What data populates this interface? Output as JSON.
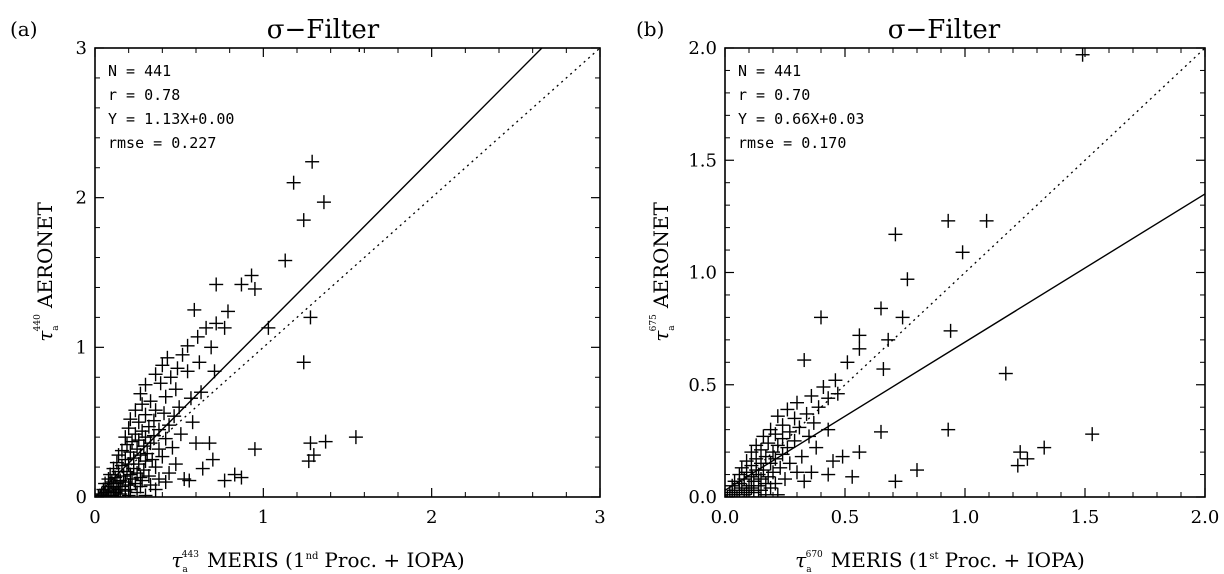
{
  "figure": {
    "panels": [
      {
        "tag": "(a)",
        "title": "σ−Filter",
        "ylabel_sym": "τ",
        "ylabel_sub": "a",
        "ylabel_sup": "440",
        "ylabel_text": "AERONET",
        "xlabel_sym": "τ",
        "xlabel_sub": "a",
        "xlabel_sup": "443",
        "xlabel_text_a": "MERIS (1",
        "xlabel_text_sup": "nd",
        "xlabel_text_b": "Proc. + IOPA)",
        "stats": [
          "N = 441",
          "r = 0.78",
          "Y = 1.13X+0.00",
          "rmse = 0.227"
        ]
      },
      {
        "tag": "(b)",
        "title": "σ−Filter",
        "ylabel_sym": "τ",
        "ylabel_sub": "a",
        "ylabel_sup": "675",
        "ylabel_text": "AERONET",
        "xlabel_sym": "τ",
        "xlabel_sub": "a",
        "xlabel_sup": "670",
        "xlabel_text_a": "MERIS (1",
        "xlabel_text_sup": "st",
        "xlabel_text_b": "Proc. + IOPA)",
        "stats": [
          "N = 441",
          "r = 0.70",
          "Y = 0.66X+0.03",
          "rmse = 0.170"
        ]
      }
    ]
  },
  "chart_data": [
    {
      "type": "scatter",
      "title": "σ−Filter",
      "xlabel": "τa443 MERIS (1nd Proc. + IOPA)",
      "ylabel": "τa440 AERONET",
      "xlim": [
        0,
        3
      ],
      "ylim": [
        0,
        3
      ],
      "xticks": [
        0,
        1,
        2,
        3
      ],
      "xtick_labels": [
        "0",
        "1",
        "2",
        "3"
      ],
      "yticks": [
        0,
        1,
        2,
        3
      ],
      "ytick_labels": [
        "0",
        "1",
        "2",
        "3"
      ],
      "marker": "+",
      "fit_line": {
        "slope": 1.13,
        "intercept": 0.0,
        "style": "solid"
      },
      "one_to_one_line": {
        "style": "dotted"
      },
      "stats": {
        "N": 441,
        "r": 0.78,
        "slope": 1.13,
        "intercept": 0.0,
        "rmse": 0.227
      },
      "points": [
        [
          1.57,
          3.02
        ],
        [
          1.29,
          2.24
        ],
        [
          1.18,
          2.1
        ],
        [
          1.36,
          1.97
        ],
        [
          1.24,
          1.85
        ],
        [
          1.13,
          1.58
        ],
        [
          0.93,
          1.48
        ],
        [
          0.87,
          1.42
        ],
        [
          0.72,
          1.42
        ],
        [
          0.95,
          1.39
        ],
        [
          0.59,
          1.25
        ],
        [
          0.79,
          1.24
        ],
        [
          1.28,
          1.2
        ],
        [
          0.77,
          1.13
        ],
        [
          1.03,
          1.13
        ],
        [
          0.66,
          1.13
        ],
        [
          0.72,
          1.16
        ],
        [
          0.61,
          1.07
        ],
        [
          0.55,
          1.01
        ],
        [
          0.69,
          1.0
        ],
        [
          0.52,
          0.95
        ],
        [
          0.43,
          0.93
        ],
        [
          0.62,
          0.9
        ],
        [
          1.24,
          0.9
        ],
        [
          0.4,
          0.88
        ],
        [
          0.49,
          0.86
        ],
        [
          0.55,
          0.84
        ],
        [
          0.71,
          0.84
        ],
        [
          0.36,
          0.82
        ],
        [
          0.45,
          0.8
        ],
        [
          0.39,
          0.76
        ],
        [
          0.3,
          0.75
        ],
        [
          0.48,
          0.72
        ],
        [
          0.63,
          0.7
        ],
        [
          0.27,
          0.69
        ],
        [
          0.42,
          0.67
        ],
        [
          0.57,
          0.66
        ],
        [
          0.33,
          0.64
        ],
        [
          0.28,
          0.62
        ],
        [
          0.5,
          0.6
        ],
        [
          0.36,
          0.58
        ],
        [
          0.24,
          0.58
        ],
        [
          0.41,
          0.56
        ],
        [
          0.3,
          0.55
        ],
        [
          0.47,
          0.54
        ],
        [
          0.21,
          0.52
        ],
        [
          0.35,
          0.51
        ],
        [
          0.26,
          0.5
        ],
        [
          0.58,
          0.5
        ],
        [
          0.44,
          0.48
        ],
        [
          0.32,
          0.47
        ],
        [
          0.2,
          0.46
        ],
        [
          0.38,
          0.45
        ],
        [
          0.28,
          0.44
        ],
        [
          0.24,
          0.42
        ],
        [
          0.51,
          0.42
        ],
        [
          0.35,
          0.41
        ],
        [
          0.3,
          0.4
        ],
        [
          0.18,
          0.4
        ],
        [
          0.42,
          0.39
        ],
        [
          0.26,
          0.38
        ],
        [
          0.22,
          0.37
        ],
        [
          0.33,
          0.36
        ],
        [
          0.6,
          0.36
        ],
        [
          0.19,
          0.35
        ],
        [
          0.29,
          0.34
        ],
        [
          0.46,
          0.33
        ],
        [
          0.38,
          0.32
        ],
        [
          0.25,
          0.32
        ],
        [
          0.16,
          0.31
        ],
        [
          0.21,
          0.3
        ],
        [
          0.31,
          0.29
        ],
        [
          0.27,
          0.28
        ],
        [
          0.14,
          0.28
        ],
        [
          0.4,
          0.27
        ],
        [
          0.23,
          0.26
        ],
        [
          0.18,
          0.25
        ],
        [
          0.34,
          0.25
        ],
        [
          0.3,
          0.24
        ],
        [
          0.13,
          0.23
        ],
        [
          0.2,
          0.22
        ],
        [
          0.26,
          0.22
        ],
        [
          0.48,
          0.22
        ],
        [
          0.16,
          0.21
        ],
        [
          0.36,
          0.2
        ],
        [
          0.23,
          0.19
        ],
        [
          0.11,
          0.19
        ],
        [
          0.29,
          0.18
        ],
        [
          0.19,
          0.17
        ],
        [
          0.14,
          0.17
        ],
        [
          0.44,
          0.16
        ],
        [
          0.25,
          0.16
        ],
        [
          0.09,
          0.15
        ],
        [
          0.21,
          0.15
        ],
        [
          0.32,
          0.14
        ],
        [
          0.17,
          0.14
        ],
        [
          0.12,
          0.13
        ],
        [
          0.27,
          0.13
        ],
        [
          0.53,
          0.12
        ],
        [
          0.08,
          0.12
        ],
        [
          0.22,
          0.12
        ],
        [
          0.38,
          0.12
        ],
        [
          0.15,
          0.11
        ],
        [
          0.28,
          0.11
        ],
        [
          0.77,
          0.11
        ],
        [
          0.18,
          0.1
        ],
        [
          0.1,
          0.1
        ],
        [
          0.42,
          0.1
        ],
        [
          0.06,
          0.09
        ],
        [
          0.24,
          0.09
        ],
        [
          0.13,
          0.09
        ],
        [
          0.33,
          0.08
        ],
        [
          0.2,
          0.08
        ],
        [
          0.08,
          0.07
        ],
        [
          0.16,
          0.07
        ],
        [
          0.27,
          0.07
        ],
        [
          0.11,
          0.06
        ],
        [
          0.05,
          0.05
        ],
        [
          0.21,
          0.05
        ],
        [
          0.14,
          0.05
        ],
        [
          0.36,
          0.05
        ],
        [
          0.09,
          0.04
        ],
        [
          0.18,
          0.04
        ],
        [
          0.06,
          0.03
        ],
        [
          0.12,
          0.03
        ],
        [
          0.25,
          0.03
        ],
        [
          0.04,
          0.02
        ],
        [
          0.15,
          0.02
        ],
        [
          0.08,
          0.01
        ],
        [
          0.1,
          0.01
        ],
        [
          0.03,
          0.01
        ],
        [
          0.2,
          0.01
        ],
        [
          0.02,
          0.0
        ],
        [
          0.13,
          0.0
        ],
        [
          0.07,
          0.0
        ],
        [
          0.3,
          0.01
        ],
        [
          0.95,
          0.32
        ],
        [
          1.28,
          0.36
        ],
        [
          1.37,
          0.37
        ],
        [
          1.55,
          0.4
        ],
        [
          1.3,
          0.28
        ],
        [
          1.27,
          0.24
        ],
        [
          0.83,
          0.15
        ],
        [
          0.87,
          0.13
        ],
        [
          0.64,
          0.19
        ],
        [
          0.56,
          0.11
        ],
        [
          0.7,
          0.25
        ],
        [
          0.68,
          0.36
        ]
      ]
    },
    {
      "type": "scatter",
      "title": "σ−Filter",
      "xlabel": "τa670 MERIS (1st Proc. + IOPA)",
      "ylabel": "τa675 AERONET",
      "xlim": [
        0,
        2
      ],
      "ylim": [
        0,
        2
      ],
      "xticks": [
        0,
        0.5,
        1,
        1.5,
        2
      ],
      "xtick_labels": [
        "0.0",
        "0.5",
        "1.0",
        "1.5",
        "2.0"
      ],
      "yticks": [
        0,
        0.5,
        1,
        1.5,
        2
      ],
      "ytick_labels": [
        "0.0",
        "0.5",
        "1.0",
        "1.5",
        "2.0"
      ],
      "marker": "+",
      "fit_line": {
        "slope": 0.66,
        "intercept": 0.03,
        "style": "solid"
      },
      "one_to_one_line": {
        "style": "dotted"
      },
      "stats": {
        "N": 441,
        "r": 0.7,
        "slope": 0.66,
        "intercept": 0.03,
        "rmse": 0.17
      },
      "points": [
        [
          1.49,
          1.97
        ],
        [
          0.93,
          1.23
        ],
        [
          1.09,
          1.23
        ],
        [
          0.71,
          1.17
        ],
        [
          0.99,
          1.09
        ],
        [
          0.76,
          0.97
        ],
        [
          0.65,
          0.84
        ],
        [
          0.74,
          0.8
        ],
        [
          0.4,
          0.8
        ],
        [
          0.94,
          0.74
        ],
        [
          0.56,
          0.72
        ],
        [
          0.68,
          0.7
        ],
        [
          0.56,
          0.66
        ],
        [
          0.51,
          0.6
        ],
        [
          0.66,
          0.57
        ],
        [
          0.33,
          0.61
        ],
        [
          1.17,
          0.55
        ],
        [
          0.46,
          0.52
        ],
        [
          0.41,
          0.49
        ],
        [
          0.47,
          0.46
        ],
        [
          0.36,
          0.45
        ],
        [
          0.43,
          0.44
        ],
        [
          0.3,
          0.42
        ],
        [
          0.39,
          0.4
        ],
        [
          0.26,
          0.39
        ],
        [
          0.34,
          0.37
        ],
        [
          0.22,
          0.36
        ],
        [
          0.29,
          0.35
        ],
        [
          0.37,
          0.33
        ],
        [
          0.24,
          0.32
        ],
        [
          0.31,
          0.31
        ],
        [
          0.19,
          0.3
        ],
        [
          0.27,
          0.29
        ],
        [
          0.21,
          0.28
        ],
        [
          0.35,
          0.27
        ],
        [
          0.16,
          0.27
        ],
        [
          0.24,
          0.26
        ],
        [
          0.29,
          0.25
        ],
        [
          0.18,
          0.24
        ],
        [
          0.13,
          0.23
        ],
        [
          0.22,
          0.23
        ],
        [
          0.26,
          0.22
        ],
        [
          0.15,
          0.21
        ],
        [
          0.2,
          0.2
        ],
        [
          0.11,
          0.2
        ],
        [
          0.24,
          0.19
        ],
        [
          0.17,
          0.18
        ],
        [
          0.32,
          0.18
        ],
        [
          0.13,
          0.17
        ],
        [
          0.21,
          0.17
        ],
        [
          0.09,
          0.16
        ],
        [
          0.19,
          0.15
        ],
        [
          0.15,
          0.15
        ],
        [
          0.27,
          0.15
        ],
        [
          0.11,
          0.14
        ],
        [
          0.23,
          0.13
        ],
        [
          0.07,
          0.13
        ],
        [
          0.16,
          0.12
        ],
        [
          0.13,
          0.12
        ],
        [
          0.2,
          0.11
        ],
        [
          0.09,
          0.11
        ],
        [
          0.3,
          0.11
        ],
        [
          0.14,
          0.1
        ],
        [
          0.06,
          0.1
        ],
        [
          0.18,
          0.09
        ],
        [
          0.11,
          0.09
        ],
        [
          0.25,
          0.08
        ],
        [
          0.08,
          0.08
        ],
        [
          0.15,
          0.08
        ],
        [
          0.04,
          0.07
        ],
        [
          0.12,
          0.07
        ],
        [
          0.21,
          0.06
        ],
        [
          0.06,
          0.06
        ],
        [
          0.17,
          0.06
        ],
        [
          0.1,
          0.05
        ],
        [
          0.03,
          0.05
        ],
        [
          0.14,
          0.05
        ],
        [
          0.07,
          0.04
        ],
        [
          0.19,
          0.04
        ],
        [
          0.11,
          0.04
        ],
        [
          0.04,
          0.03
        ],
        [
          0.09,
          0.03
        ],
        [
          0.15,
          0.03
        ],
        [
          0.02,
          0.02
        ],
        [
          0.06,
          0.02
        ],
        [
          0.12,
          0.02
        ],
        [
          0.08,
          0.01
        ],
        [
          0.03,
          0.01
        ],
        [
          0.17,
          0.01
        ],
        [
          0.05,
          0.0
        ],
        [
          0.01,
          0.0
        ],
        [
          0.1,
          0.0
        ],
        [
          0.14,
          0.0
        ],
        [
          0.22,
          0.01
        ],
        [
          0.43,
          0.3
        ],
        [
          0.38,
          0.22
        ],
        [
          0.45,
          0.16
        ],
        [
          0.49,
          0.18
        ],
        [
          0.53,
          0.09
        ],
        [
          0.56,
          0.2
        ],
        [
          0.65,
          0.29
        ],
        [
          0.8,
          0.12
        ],
        [
          0.71,
          0.07
        ],
        [
          0.93,
          0.3
        ],
        [
          1.22,
          0.14
        ],
        [
          1.23,
          0.2
        ],
        [
          1.26,
          0.17
        ],
        [
          1.33,
          0.22
        ],
        [
          1.53,
          0.28
        ],
        [
          0.43,
          0.1
        ],
        [
          0.36,
          0.11
        ],
        [
          0.33,
          0.07
        ]
      ]
    }
  ]
}
